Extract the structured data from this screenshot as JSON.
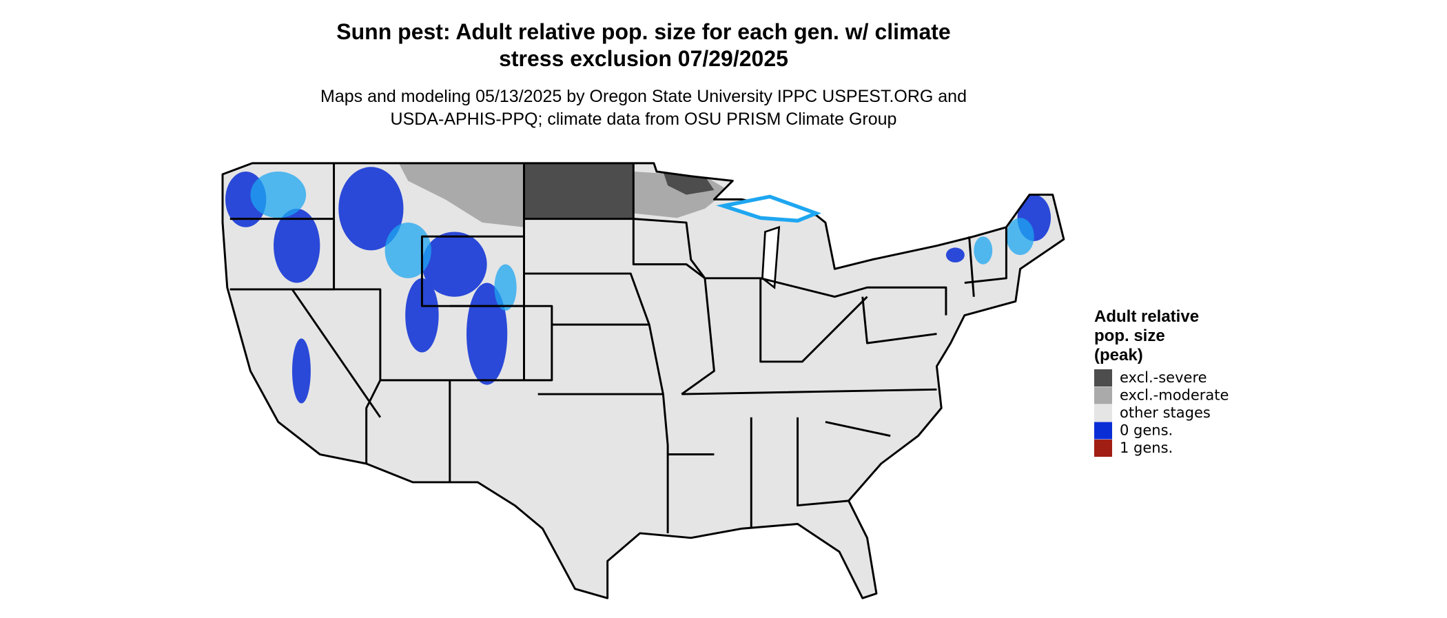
{
  "map": {
    "title": [
      "Sunn pest: Adult relative pop. size for each gen. w/ climate",
      "stress exclusion 07/29/2025"
    ],
    "subtitle": [
      "Maps and modeling 05/13/2025 by Oregon State University IPPC USPEST.ORG and",
      "USDA-APHIS-PPQ; climate data from OSU PRISM Climate Group"
    ],
    "legend": {
      "title": [
        "Adult relative",
        "pop. size",
        "(peak)"
      ],
      "items": [
        {
          "label": "excl.-severe",
          "color": "#4d4d4d"
        },
        {
          "label": "excl.-moderate",
          "color": "#aaaaaa"
        },
        {
          "label": "other stages",
          "color": "#e5e5e5"
        },
        {
          "label": "0 gens.",
          "color": "#0a2ed6"
        },
        {
          "label": "1 gens.",
          "color": "#a11e14"
        }
      ]
    }
  }
}
